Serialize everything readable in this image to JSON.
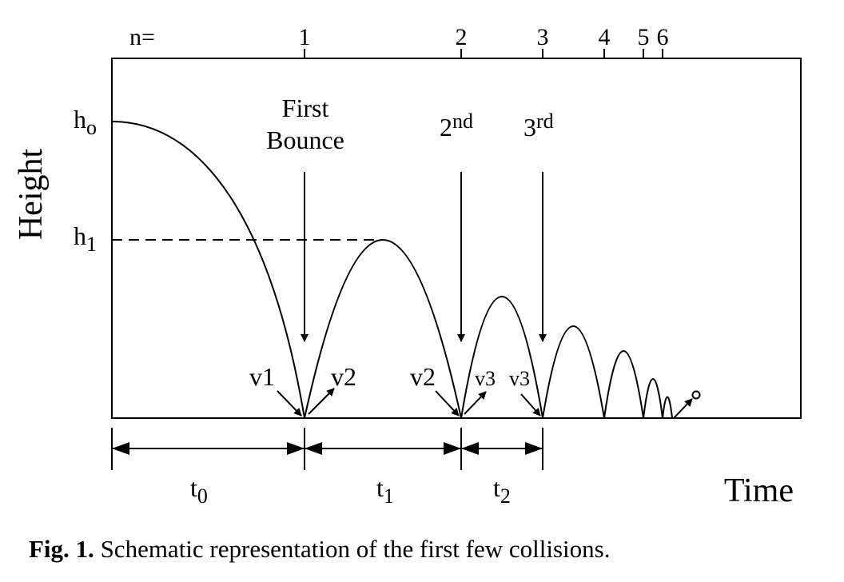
{
  "axes": {
    "y_title": "Height",
    "x_title": "Time"
  },
  "collision_index": {
    "prefix": "n=",
    "ticks": [
      "1",
      "2",
      "3",
      "4",
      "5",
      "6"
    ]
  },
  "heights": {
    "h0": {
      "base": "h",
      "sub": "o"
    },
    "h1": {
      "base": "h",
      "sub": "1"
    }
  },
  "bounce_labels": {
    "first_line1": "First",
    "first_line2": "Bounce",
    "second": {
      "num": "2",
      "sup": "nd"
    },
    "third": {
      "num": "3",
      "sup": "rd"
    }
  },
  "velocity_labels": {
    "v1": "v1",
    "v2_out": "v2",
    "v2_in": "v2",
    "v3_out": "v3",
    "v3_in": "v3"
  },
  "intervals": {
    "t0": {
      "base": "t",
      "sub": "0"
    },
    "t1": {
      "base": "t",
      "sub": "1"
    },
    "t2": {
      "base": "t",
      "sub": "2"
    }
  },
  "caption": {
    "label": "Fig. 1.",
    "text": " Schematic representation of the first few collisions."
  }
}
